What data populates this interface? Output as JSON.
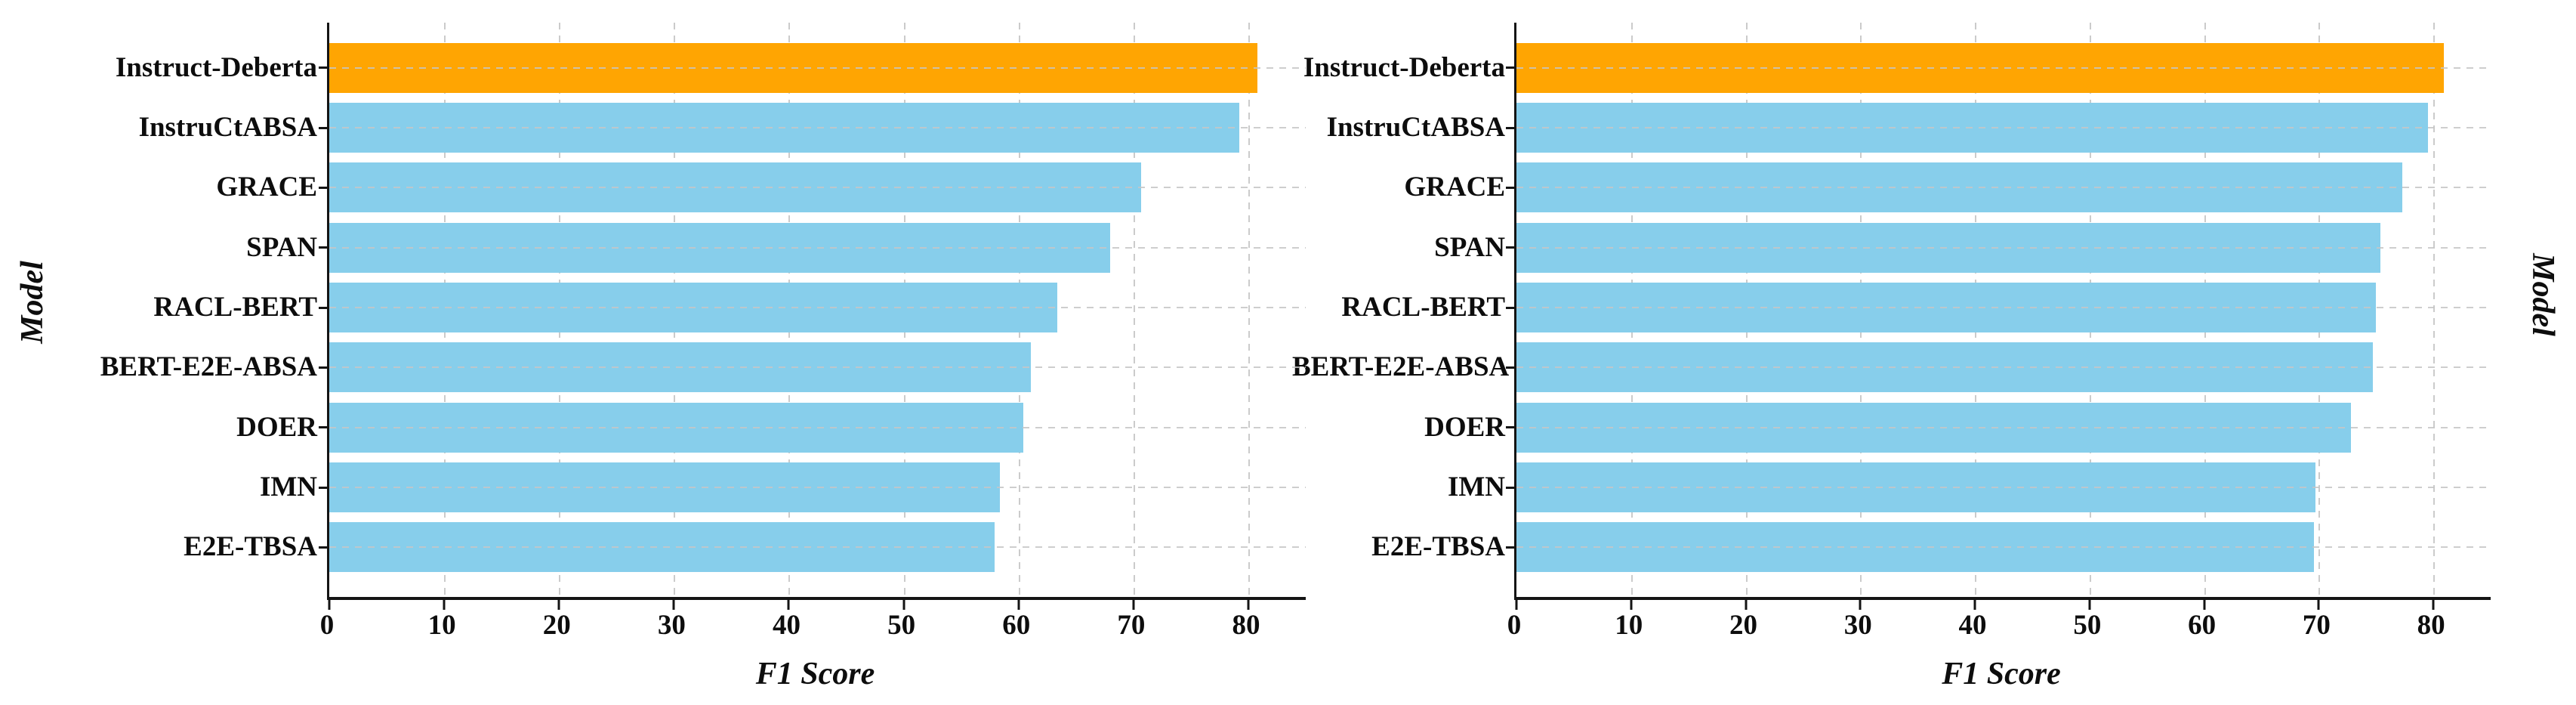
{
  "figure": {
    "background": "#ffffff",
    "bar_color_default": "#87CEEB",
    "bar_color_highlight": "#FFA502",
    "axis_color": "#141414",
    "grid_color": "#cbcbcb",
    "highlight_category": "Instruct-Deberta"
  },
  "chart_data": [
    {
      "type": "bar",
      "orientation": "horizontal",
      "title": "",
      "xlabel": "F1 Score",
      "ylabel": "Model",
      "ylabel_side": "left",
      "categories": [
        "Instruct-Deberta",
        "InstruCtABSA",
        "GRACE",
        "SPAN",
        "RACL-BERT",
        "BERT-E2E-ABSA",
        "DOER",
        "IMN",
        "E2E-TBSA"
      ],
      "values": [
        80.8,
        79.2,
        70.7,
        68.0,
        63.4,
        61.1,
        60.4,
        58.4,
        57.9
      ],
      "bar_colors": [
        "#FFA502",
        "#87CEEB",
        "#87CEEB",
        "#87CEEB",
        "#87CEEB",
        "#87CEEB",
        "#87CEEB",
        "#87CEEB",
        "#87CEEB"
      ],
      "highlight_index": 0,
      "xlim": [
        0,
        85
      ],
      "xticks": [
        0,
        10,
        20,
        30,
        40,
        50,
        60,
        70,
        80
      ],
      "grid": true,
      "legend": null
    },
    {
      "type": "bar",
      "orientation": "horizontal",
      "title": "",
      "xlabel": "F1 Score",
      "ylabel": "Model",
      "ylabel_side": "right",
      "categories": [
        "Instruct-Deberta",
        "InstruCtABSA",
        "GRACE",
        "SPAN",
        "RACL-BERT",
        "BERT-E2E-ABSA",
        "DOER",
        "IMN",
        "E2E-TBSA"
      ],
      "values": [
        80.9,
        79.5,
        77.3,
        75.4,
        75.0,
        74.7,
        72.8,
        69.7,
        69.6
      ],
      "bar_colors": [
        "#FFA502",
        "#87CEEB",
        "#87CEEB",
        "#87CEEB",
        "#87CEEB",
        "#87CEEB",
        "#87CEEB",
        "#87CEEB",
        "#87CEEB"
      ],
      "highlight_index": 0,
      "xlim": [
        0,
        85
      ],
      "xticks": [
        0,
        10,
        20,
        30,
        40,
        50,
        60,
        70,
        80
      ],
      "grid": true,
      "legend": null
    }
  ]
}
